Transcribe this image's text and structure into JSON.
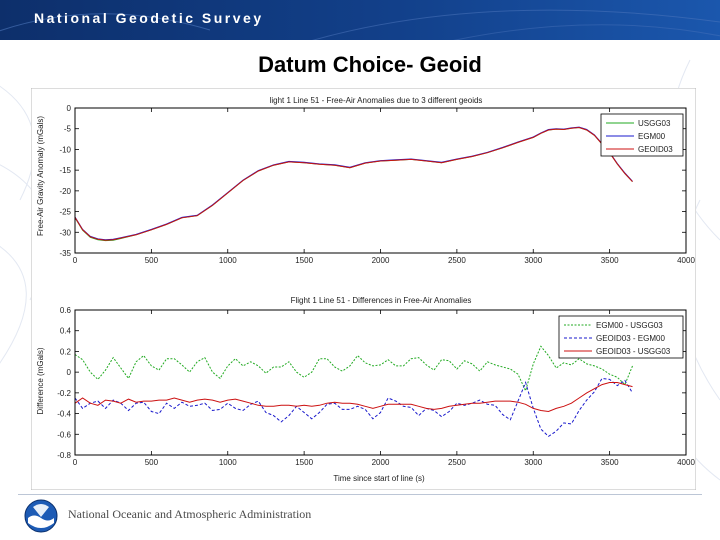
{
  "header": {
    "agency_name": "National Geodetic Survey"
  },
  "slide": {
    "title": "Datum Choice- Geoid"
  },
  "footer": {
    "agency_name": "National Oceanic and Atmospheric Administration"
  },
  "colors": {
    "green": "#22aa22",
    "blue": "#1a1acc",
    "red": "#cc1111",
    "header_blue": "#12408a"
  },
  "icons": {
    "logo": "noaa-logo-icon"
  },
  "chart_data": [
    {
      "type": "line",
      "title": "light 1 Line 51 - Free-Air Anomalies due to 3 different geoids",
      "xlabel": "",
      "ylabel": "Free-Air Gravity Anomaly (mGals)",
      "xlim": [
        0,
        4000
      ],
      "ylim": [
        -35,
        0
      ],
      "xticks": [
        "0",
        "500",
        "1000",
        "1500",
        "2000",
        "2500",
        "3000",
        "3500",
        "4000"
      ],
      "yticks": [
        "0",
        "-5",
        "-10",
        "-15",
        "-20",
        "-25",
        "-30",
        "-35"
      ],
      "legend_position": "top-right",
      "series": [
        {
          "name": "USGG03",
          "color": "#22aa22",
          "x": [
            0,
            50,
            100,
            150,
            200,
            250,
            300,
            400,
            500,
            600,
            700,
            800,
            900,
            1000,
            1100,
            1200,
            1300,
            1400,
            1500,
            1600,
            1700,
            1800,
            1900,
            2000,
            2100,
            2200,
            2300,
            2400,
            2500,
            2600,
            2700,
            2800,
            2900,
            3000,
            3050,
            3100,
            3150,
            3200,
            3250,
            3300,
            3350,
            3400,
            3450,
            3500,
            3550,
            3600,
            3650
          ],
          "y": [
            -26.5,
            -29.5,
            -31.2,
            -31.8,
            -32,
            -31.9,
            -31.5,
            -30.6,
            -29.4,
            -28.1,
            -26.5,
            -26,
            -23.5,
            -20.5,
            -17.5,
            -15.2,
            -13.8,
            -13,
            -13.2,
            -13.6,
            -13.8,
            -14.4,
            -13.3,
            -12.8,
            -12.6,
            -12.4,
            -12.8,
            -13.2,
            -12.4,
            -11.7,
            -10.8,
            -9.6,
            -8.3,
            -7.1,
            -6.1,
            -5.3,
            -5.1,
            -5.2,
            -4.9,
            -4.7,
            -5.3,
            -6.6,
            -8.7,
            -10.8,
            -13.5,
            -15.8,
            -17.8
          ]
        },
        {
          "name": "EGM00",
          "color": "#1a1acc",
          "x": [
            0,
            50,
            100,
            150,
            200,
            250,
            300,
            400,
            500,
            600,
            700,
            800,
            900,
            1000,
            1100,
            1200,
            1300,
            1400,
            1500,
            1600,
            1700,
            1800,
            1900,
            2000,
            2100,
            2200,
            2300,
            2400,
            2500,
            2600,
            2700,
            2800,
            2900,
            3000,
            3050,
            3100,
            3150,
            3200,
            3250,
            3300,
            3350,
            3400,
            3450,
            3500,
            3550,
            3600,
            3650
          ],
          "y": [
            -26.3,
            -29.3,
            -31,
            -31.6,
            -31.8,
            -31.7,
            -31.3,
            -30.5,
            -29.3,
            -28,
            -26.4,
            -25.9,
            -23.4,
            -20.4,
            -17.4,
            -15.1,
            -13.7,
            -12.9,
            -13.1,
            -13.5,
            -13.7,
            -14.3,
            -13.2,
            -12.7,
            -12.5,
            -12.3,
            -12.7,
            -13.1,
            -12.3,
            -11.6,
            -10.7,
            -9.5,
            -8.2,
            -7,
            -6,
            -5.2,
            -5,
            -5.1,
            -4.8,
            -4.6,
            -5.2,
            -6.5,
            -8.6,
            -10.7,
            -13.4,
            -15.7,
            -17.7
          ]
        },
        {
          "name": "GEOID03",
          "color": "#cc1111",
          "x": [
            0,
            50,
            100,
            150,
            200,
            250,
            300,
            400,
            500,
            600,
            700,
            800,
            900,
            1000,
            1100,
            1200,
            1300,
            1400,
            1500,
            1600,
            1700,
            1800,
            1900,
            2000,
            2100,
            2200,
            2300,
            2400,
            2500,
            2600,
            2700,
            2800,
            2900,
            3000,
            3050,
            3100,
            3150,
            3200,
            3250,
            3300,
            3350,
            3400,
            3450,
            3500,
            3550,
            3600,
            3650
          ],
          "y": [
            -26.4,
            -29.4,
            -31.1,
            -31.7,
            -31.9,
            -31.8,
            -31.4,
            -30.6,
            -29.4,
            -28.1,
            -26.5,
            -26,
            -23.5,
            -20.5,
            -17.5,
            -15.2,
            -13.8,
            -13,
            -13.2,
            -13.6,
            -13.8,
            -14.4,
            -13.3,
            -12.8,
            -12.6,
            -12.4,
            -12.8,
            -13.2,
            -12.4,
            -11.7,
            -10.8,
            -9.6,
            -8.3,
            -7.1,
            -6.1,
            -5.3,
            -5.1,
            -5.2,
            -4.9,
            -4.7,
            -5.3,
            -6.6,
            -8.7,
            -10.8,
            -13.5,
            -15.8,
            -17.8
          ]
        }
      ]
    },
    {
      "type": "line",
      "title": "Flight 1 Line 51 - Differences in Free-Air Anomalies",
      "xlabel": "Time since start of line (s)",
      "ylabel": "Difference (mGals)",
      "xlim": [
        0,
        4000
      ],
      "ylim": [
        -0.8,
        0.6
      ],
      "xticks": [
        "0",
        "500",
        "1000",
        "1500",
        "2000",
        "2500",
        "3000",
        "3500",
        "4000"
      ],
      "yticks": [
        "0.6",
        "0.4",
        "0.2",
        "0",
        "-0.2",
        "-0.4",
        "-0.6",
        "-0.8"
      ],
      "legend_position": "top-right",
      "series": [
        {
          "name": "EGM00 - USGG03",
          "color": "#22aa22",
          "x": [
            0,
            50,
            100,
            150,
            200,
            250,
            300,
            350,
            400,
            450,
            500,
            550,
            600,
            650,
            700,
            750,
            800,
            850,
            900,
            950,
            1000,
            1050,
            1100,
            1150,
            1200,
            1250,
            1300,
            1350,
            1400,
            1450,
            1500,
            1550,
            1600,
            1650,
            1700,
            1750,
            1800,
            1850,
            1900,
            1950,
            2000,
            2050,
            2100,
            2150,
            2200,
            2250,
            2300,
            2350,
            2400,
            2450,
            2500,
            2550,
            2600,
            2650,
            2700,
            2750,
            2800,
            2850,
            2900,
            2950,
            3000,
            3050,
            3100,
            3150,
            3200,
            3250,
            3300,
            3350,
            3400,
            3450,
            3500,
            3550,
            3600,
            3650
          ],
          "y": [
            0.17,
            0.12,
            0.0,
            -0.07,
            0.02,
            0.14,
            0.04,
            -0.06,
            0.1,
            0.16,
            0.06,
            0.02,
            0.13,
            0.13,
            0.07,
            0.0,
            0.1,
            0.14,
            0.0,
            -0.06,
            0.06,
            0.13,
            0.06,
            0.1,
            0.06,
            -0.01,
            0.05,
            0.05,
            0.1,
            0.0,
            -0.05,
            0.0,
            0.13,
            0.13,
            0.05,
            0.01,
            0.06,
            0.16,
            0.09,
            0.06,
            0.07,
            0.12,
            0.06,
            0.06,
            0.13,
            0.14,
            0.07,
            0.02,
            0.12,
            0.11,
            0.03,
            0.11,
            0.08,
            0.01,
            0.1,
            0.07,
            0.05,
            0.03,
            -0.02,
            -0.18,
            0.08,
            0.25,
            0.16,
            0.04,
            0.09,
            0.07,
            0.13,
            0.08,
            0.06,
            0.03,
            -0.02,
            -0.05,
            -0.12,
            0.06
          ]
        },
        {
          "name": "GEOID03 - EGM00",
          "color": "#1a1acc",
          "x": [
            0,
            50,
            100,
            150,
            200,
            250,
            300,
            350,
            400,
            450,
            500,
            550,
            600,
            650,
            700,
            750,
            800,
            850,
            900,
            950,
            1000,
            1050,
            1100,
            1150,
            1200,
            1250,
            1300,
            1350,
            1400,
            1450,
            1500,
            1550,
            1600,
            1650,
            1700,
            1750,
            1800,
            1850,
            1900,
            1950,
            2000,
            2050,
            2100,
            2150,
            2200,
            2250,
            2300,
            2350,
            2400,
            2450,
            2500,
            2550,
            2600,
            2650,
            2700,
            2750,
            2800,
            2850,
            2900,
            2950,
            3000,
            3050,
            3100,
            3150,
            3200,
            3250,
            3300,
            3350,
            3400,
            3450,
            3500,
            3550,
            3600,
            3650
          ],
          "y": [
            -0.25,
            -0.35,
            -0.3,
            -0.28,
            -0.35,
            -0.27,
            -0.3,
            -0.37,
            -0.3,
            -0.29,
            -0.38,
            -0.4,
            -0.3,
            -0.35,
            -0.29,
            -0.33,
            -0.32,
            -0.3,
            -0.37,
            -0.36,
            -0.3,
            -0.35,
            -0.37,
            -0.31,
            -0.28,
            -0.39,
            -0.42,
            -0.48,
            -0.42,
            -0.33,
            -0.39,
            -0.45,
            -0.39,
            -0.31,
            -0.3,
            -0.36,
            -0.36,
            -0.33,
            -0.36,
            -0.45,
            -0.39,
            -0.25,
            -0.28,
            -0.33,
            -0.34,
            -0.42,
            -0.35,
            -0.37,
            -0.43,
            -0.38,
            -0.3,
            -0.32,
            -0.3,
            -0.27,
            -0.31,
            -0.32,
            -0.41,
            -0.46,
            -0.28,
            -0.1,
            -0.35,
            -0.55,
            -0.62,
            -0.57,
            -0.49,
            -0.5,
            -0.37,
            -0.27,
            -0.19,
            -0.06,
            -0.07,
            -0.13,
            -0.08,
            -0.2
          ]
        },
        {
          "name": "GEOID03 - USGG03",
          "color": "#cc1111",
          "x": [
            0,
            50,
            100,
            150,
            200,
            250,
            300,
            350,
            400,
            450,
            500,
            550,
            600,
            650,
            700,
            750,
            800,
            850,
            900,
            950,
            1000,
            1050,
            1100,
            1150,
            1200,
            1250,
            1300,
            1350,
            1400,
            1450,
            1500,
            1550,
            1600,
            1650,
            1700,
            1750,
            1800,
            1850,
            1900,
            1950,
            2000,
            2050,
            2100,
            2150,
            2200,
            2250,
            2300,
            2350,
            2400,
            2450,
            2500,
            2550,
            2600,
            2650,
            2700,
            2750,
            2800,
            2850,
            2900,
            2950,
            3000,
            3050,
            3100,
            3150,
            3200,
            3250,
            3300,
            3350,
            3400,
            3450,
            3500,
            3550,
            3600,
            3650
          ],
          "y": [
            -0.3,
            -0.25,
            -0.3,
            -0.32,
            -0.27,
            -0.28,
            -0.3,
            -0.26,
            -0.29,
            -0.28,
            -0.28,
            -0.27,
            -0.27,
            -0.25,
            -0.27,
            -0.29,
            -0.27,
            -0.26,
            -0.27,
            -0.29,
            -0.27,
            -0.26,
            -0.28,
            -0.3,
            -0.32,
            -0.33,
            -0.33,
            -0.32,
            -0.32,
            -0.33,
            -0.32,
            -0.33,
            -0.32,
            -0.3,
            -0.29,
            -0.3,
            -0.3,
            -0.31,
            -0.33,
            -0.35,
            -0.33,
            -0.31,
            -0.31,
            -0.31,
            -0.31,
            -0.33,
            -0.35,
            -0.36,
            -0.35,
            -0.33,
            -0.32,
            -0.31,
            -0.3,
            -0.3,
            -0.29,
            -0.28,
            -0.28,
            -0.28,
            -0.29,
            -0.31,
            -0.35,
            -0.37,
            -0.38,
            -0.35,
            -0.33,
            -0.3,
            -0.25,
            -0.2,
            -0.16,
            -0.12,
            -0.1,
            -0.1,
            -0.12,
            -0.14
          ]
        }
      ]
    }
  ]
}
